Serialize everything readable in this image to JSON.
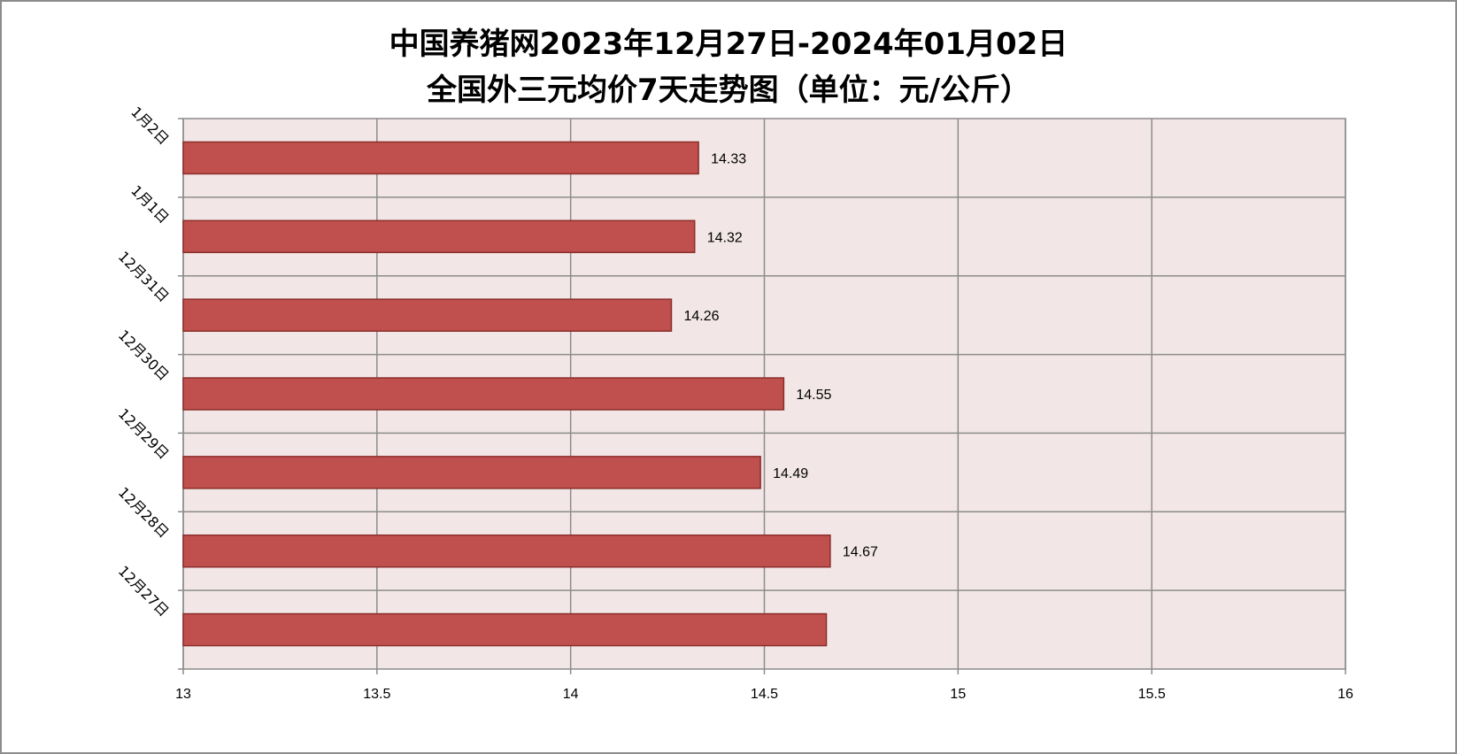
{
  "chart_data": {
    "type": "bar",
    "orientation": "horizontal",
    "title": [
      "中国养猪网2023年12月27日-2024年01月02日",
      "全国外三元均价7天走势图（单位：元/公斤）"
    ],
    "categories": [
      "1月2日",
      "1月1日",
      "12月31日",
      "12月30日",
      "12月29日",
      "12月28日",
      "12月27日"
    ],
    "values": [
      14.33,
      14.32,
      14.26,
      14.55,
      14.49,
      14.67,
      14.66
    ],
    "data_labels": [
      "14.33",
      "14.32",
      "14.26",
      "14.55",
      "14.49",
      "14.67",
      ""
    ],
    "xlim": [
      13,
      16
    ],
    "xticks": [
      "13",
      "13.5",
      "14",
      "14.5",
      "15",
      "15.5",
      "16"
    ],
    "xlabel": "",
    "ylabel": "",
    "grid": true,
    "legend": "none",
    "colors": {
      "bar_fill": "#c0504d",
      "bar_stroke": "#8b2e2b",
      "plot_bg": "#f2e6e6",
      "grid": "#8c8c8c"
    }
  }
}
